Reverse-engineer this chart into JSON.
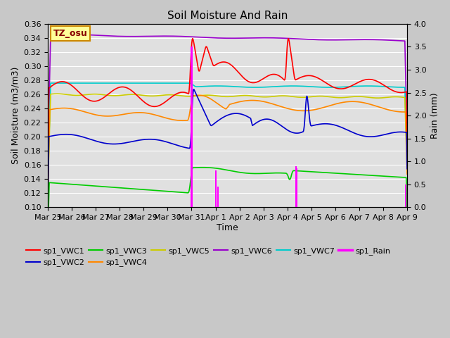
{
  "title": "Soil Moisture And Rain",
  "xlabel": "Time",
  "ylabel_left": "Soil Moisture (m3/m3)",
  "ylabel_right": "Rain (mm)",
  "ylim_left": [
    0.1,
    0.36
  ],
  "ylim_right": [
    0.0,
    4.0
  ],
  "fig_bg_color": "#c8c8c8",
  "plot_bg_color": "#e0e0e0",
  "annotation_text": "TZ_osu",
  "annotation_fg": "#880000",
  "annotation_bg": "#ffff99",
  "annotation_border": "#cc8800",
  "colors": {
    "VWC1": "#ff0000",
    "VWC2": "#0000cc",
    "VWC3": "#00cc00",
    "VWC4": "#ff8800",
    "VWC5": "#cccc00",
    "VWC6": "#9900cc",
    "VWC7": "#00cccc",
    "Rain": "#ff00ff"
  },
  "legend_entries": [
    {
      "label": "sp1_VWC1",
      "color": "#ff0000"
    },
    {
      "label": "sp1_VWC2",
      "color": "#0000cc"
    },
    {
      "label": "sp1_VWC3",
      "color": "#00cc00"
    },
    {
      "label": "sp1_VWC4",
      "color": "#ff8800"
    },
    {
      "label": "sp1_VWC5",
      "color": "#cccc00"
    },
    {
      "label": "sp1_VWC6",
      "color": "#9900cc"
    },
    {
      "label": "sp1_VWC7",
      "color": "#00cccc"
    },
    {
      "label": "sp1_Rain",
      "color": "#ff00ff"
    }
  ],
  "yticks_left": [
    0.1,
    0.12,
    0.14,
    0.16,
    0.18,
    0.2,
    0.22,
    0.24,
    0.26,
    0.28,
    0.3,
    0.32,
    0.34,
    0.36
  ],
  "yticks_right": [
    0.0,
    0.5,
    1.0,
    1.5,
    2.0,
    2.5,
    3.0,
    3.5,
    4.0
  ],
  "xtick_positions": [
    0,
    1,
    2,
    3,
    4,
    5,
    6,
    7,
    8,
    9,
    10,
    11,
    12,
    13,
    14,
    15
  ],
  "xtick_labels": [
    "Mar 25",
    "Mar 26",
    "Mar 27",
    "Mar 28",
    "Mar 29",
    "Mar 30",
    "Mar 31",
    "Apr 1",
    "Apr 2",
    "Apr 3",
    "Apr 4",
    "Apr 5",
    "Apr 6",
    "Apr 7",
    "Apr 8",
    "Apr 9"
  ]
}
